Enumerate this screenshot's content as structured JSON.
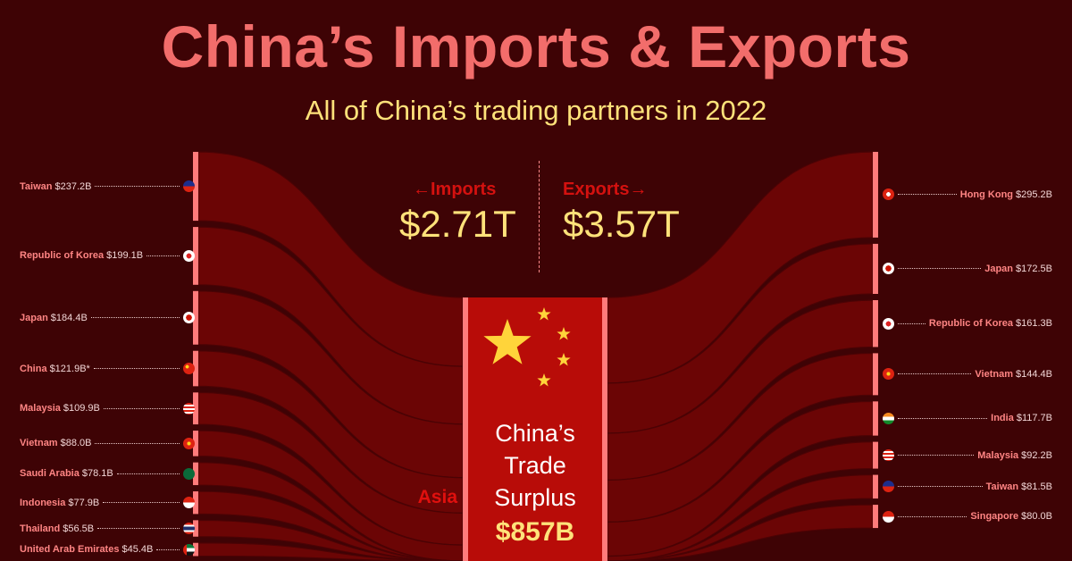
{
  "header": {
    "title": "China’s Imports & Exports",
    "subtitle": "All of China’s trading partners in 2022"
  },
  "summary": {
    "imports_label": "Imports",
    "imports_value": "$2.71T",
    "exports_label": "Exports",
    "exports_value": "$3.57T",
    "surplus_line1": "China’s",
    "surplus_line2": "Trade",
    "surplus_line3": "Surplus",
    "surplus_value": "$857B",
    "region_label": "Asia"
  },
  "colors": {
    "background": "#3e0305",
    "flow": "#6b0505",
    "bar": "#ff7b7b",
    "center": "#b80c08",
    "title": "#f26d6b",
    "accent_yellow": "#ffe27a"
  },
  "chart_data": {
    "type": "sankey",
    "title": "China’s Imports & Exports",
    "subtitle": "All of China’s trading partners in 2022",
    "imports": [
      {
        "name": "Taiwan",
        "value": 237.2,
        "label": "$237.2B",
        "flag": "taiwan-flag"
      },
      {
        "name": "Republic of Korea",
        "value": 199.1,
        "label": "$199.1B",
        "flag": "korea-flag"
      },
      {
        "name": "Japan",
        "value": 184.4,
        "label": "$184.4B",
        "flag": "japan-flag"
      },
      {
        "name": "China",
        "value": 121.9,
        "label": "$121.9B*",
        "flag": "china-flag"
      },
      {
        "name": "Malaysia",
        "value": 109.9,
        "label": "$109.9B",
        "flag": "malaysia-flag"
      },
      {
        "name": "Vietnam",
        "value": 88.0,
        "label": "$88.0B",
        "flag": "vietnam-flag"
      },
      {
        "name": "Saudi Arabia",
        "value": 78.1,
        "label": "$78.1B",
        "flag": "saudi-arabia-flag"
      },
      {
        "name": "Indonesia",
        "value": 77.9,
        "label": "$77.9B",
        "flag": "indonesia-flag"
      },
      {
        "name": "Thailand",
        "value": 56.5,
        "label": "$56.5B",
        "flag": "thailand-flag"
      },
      {
        "name": "United Arab Emirates",
        "value": 45.4,
        "label": "$45.4B",
        "flag": "uae-flag"
      }
    ],
    "exports": [
      {
        "name": "Hong Kong",
        "value": 295.2,
        "label": "$295.2B",
        "flag": "hong-kong-flag"
      },
      {
        "name": "Japan",
        "value": 172.5,
        "label": "$172.5B",
        "flag": "japan-flag"
      },
      {
        "name": "Republic of Korea",
        "value": 161.3,
        "label": "$161.3B",
        "flag": "korea-flag"
      },
      {
        "name": "Vietnam",
        "value": 144.4,
        "label": "$144.4B",
        "flag": "vietnam-flag"
      },
      {
        "name": "India",
        "value": 117.7,
        "label": "$117.7B",
        "flag": "india-flag"
      },
      {
        "name": "Malaysia",
        "value": 92.2,
        "label": "$92.2B",
        "flag": "malaysia-flag"
      },
      {
        "name": "Taiwan",
        "value": 81.5,
        "label": "$81.5B",
        "flag": "taiwan-flag"
      },
      {
        "name": "Singapore",
        "value": 80.0,
        "label": "$80.0B",
        "flag": "singapore-flag"
      }
    ]
  }
}
